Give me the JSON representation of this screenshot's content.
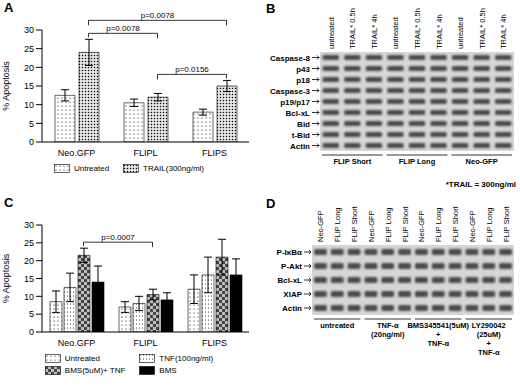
{
  "chart_data": [
    {
      "type": "bar",
      "title": "A",
      "y_label": "% Apoptosis",
      "categories": [
        "Neo.GFP",
        "FLIPL",
        "FLIPS"
      ],
      "series": [
        {
          "name": "Untreated",
          "color": "#ffffff",
          "values": [
            12.5,
            10.5,
            8
          ],
          "errors": [
            1.5,
            1,
            0.8
          ]
        },
        {
          "name": "TRAIL(300ng/ml)",
          "color": "#e6e6e6",
          "values": [
            24,
            12,
            15
          ],
          "errors": [
            3.5,
            1,
            1.5
          ]
        }
      ],
      "ylim": [
        0,
        30
      ],
      "yticks": [
        0,
        5,
        10,
        15,
        20,
        25,
        30
      ],
      "legend": "bottom",
      "annotations": [
        {
          "text": "p=0.0078",
          "from": {
            "category": "Neo.GFP",
            "series": "TRAIL(300ng/ml)"
          },
          "to": {
            "category": "FLIPL",
            "series": "TRAIL(300ng/ml)"
          }
        },
        {
          "text": "p=0.0078",
          "from": {
            "category": "Neo.GFP",
            "series": "TRAIL(300ng/ml)"
          },
          "to": {
            "category": "FLIPS",
            "series": "TRAIL(300ng/ml)"
          }
        },
        {
          "text": "p=0.0156",
          "from": {
            "category": "FLIPL",
            "series": "TRAIL(300ng/ml)"
          },
          "to": {
            "category": "FLIPS",
            "series": "TRAIL(300ng/ml)"
          }
        }
      ]
    },
    {
      "type": "bar",
      "title": "C",
      "y_label": "% Apoptosis",
      "categories": [
        "Neo.GFP",
        "FLIPL",
        "FLIPS"
      ],
      "series": [
        {
          "name": "Untreated",
          "color": "#ffffff",
          "values": [
            8.5,
            7,
            12
          ],
          "errors": [
            3,
            1.5,
            4
          ]
        },
        {
          "name": "TNF(100ng/ml)",
          "color": "#ffffff",
          "values": [
            12.5,
            8,
            16
          ],
          "errors": [
            4,
            2,
            5
          ]
        },
        {
          "name": "BMS(5uM)+ TNF",
          "color": "#bfbfbf",
          "values": [
            21.5,
            10.5,
            21
          ],
          "errors": [
            2,
            1.5,
            5
          ]
        },
        {
          "name": "BMS",
          "color": "#000000",
          "values": [
            14,
            9,
            16
          ],
          "errors": [
            4.5,
            2,
            4.5
          ]
        }
      ],
      "ylim": [
        0,
        30
      ],
      "yticks": [
        0,
        5,
        10,
        15,
        20,
        25,
        30
      ],
      "legend": "bottom",
      "annotations": [
        {
          "text": "p=0.0007",
          "from": {
            "category": "Neo.GFP",
            "series": "BMS(5uM)+ TNF"
          },
          "to": {
            "category": "FLIPL",
            "series": "BMS(5uM)+ TNF"
          }
        }
      ]
    }
  ],
  "blots": [
    {
      "title": "B",
      "lanes": [
        "untreated",
        "TRAIL* 0.5h",
        "TRAIL* 4h",
        "untreated",
        "TRAIL* 0.5h",
        "TRAIL* 4h",
        "untreated",
        "TRAIL* 0.5h",
        "TRAIL* 4h"
      ],
      "rows": [
        "Caspase-8",
        "p43",
        "p18",
        "Caspase-3",
        "p19/p17",
        "Bcl-xL",
        "Bid",
        "t-Bid",
        "Actin"
      ],
      "groups": [
        {
          "label": "FLIP Short",
          "lanes": 3
        },
        {
          "label": "FLIP Long",
          "lanes": 3
        },
        {
          "label": "Neo-GFP",
          "lanes": 3
        }
      ],
      "note": "*TRAIL = 300ng/ml"
    },
    {
      "title": "D",
      "lanes": [
        "Neo-GFP",
        "FLIP Long",
        "FLIP Short",
        "Neo-GFP",
        "FLIP Long",
        "FLIP Short",
        "Neo-GFP",
        "FLIP Long",
        "FLIP Short",
        "Neo-GFP",
        "FLIP Long",
        "FLIP Short"
      ],
      "rows": [
        "P-IκBα",
        "P-Akt",
        "Bcl-xL",
        "XIAP",
        "Actin"
      ],
      "groups": [
        {
          "label": "untreated",
          "lanes": 3
        },
        {
          "label": "TNF-α (20ng/ml)",
          "lanes": 3
        },
        {
          "label": "BMS345541(5uM) + TNF-α",
          "lanes": 3
        },
        {
          "label": "LY290042 (25uM) + TNF-α",
          "lanes": 3
        }
      ]
    }
  ]
}
